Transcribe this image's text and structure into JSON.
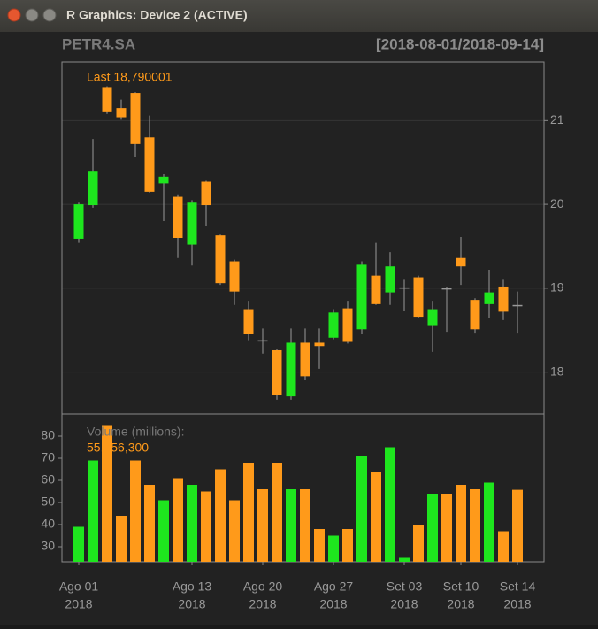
{
  "window": {
    "title": "R Graphics: Device 2 (ACTIVE)"
  },
  "chart_data": {
    "type": "candlestick",
    "title": "PETR4.SA",
    "subtitle": "[2018-08-01/2018-09-14]",
    "categories": [
      "Ago 01",
      null,
      null,
      null,
      null,
      null,
      null,
      null,
      "Ago 13",
      null,
      null,
      null,
      null,
      "Ago 20",
      null,
      null,
      null,
      null,
      "Ago 27",
      null,
      null,
      null,
      null,
      "Set 03",
      null,
      null,
      null,
      "Set 10",
      null,
      null,
      null,
      "Set 14"
    ],
    "category_years": [
      "2018",
      null,
      null,
      null,
      null,
      null,
      null,
      null,
      "2018",
      null,
      null,
      null,
      null,
      "2018",
      null,
      null,
      null,
      null,
      "2018",
      null,
      null,
      null,
      null,
      "2018",
      null,
      null,
      null,
      "2018",
      null,
      null,
      null,
      "2018"
    ],
    "open": [
      19.59,
      19.99,
      21.4,
      21.15,
      21.33,
      20.8,
      20.25,
      20.09,
      19.52,
      20.27,
      19.63,
      19.32,
      18.75,
      18.38,
      18.26,
      17.71,
      18.35,
      18.35,
      18.41,
      18.76,
      18.51,
      19.15,
      18.95,
      19.0,
      19.13,
      18.56,
      19.0,
      19.36,
      18.86,
      18.81,
      19.02,
      18.8
    ],
    "high": [
      20.03,
      20.78,
      21.41,
      21.25,
      21.34,
      21.06,
      20.36,
      20.12,
      20.05,
      20.28,
      19.64,
      19.34,
      18.85,
      18.52,
      18.28,
      18.52,
      18.52,
      18.52,
      18.75,
      18.85,
      19.32,
      19.54,
      19.43,
      19.11,
      19.15,
      18.85,
      19.02,
      19.61,
      18.88,
      19.22,
      19.11,
      18.96
    ],
    "low": [
      19.54,
      19.96,
      21.08,
      21.01,
      20.56,
      20.14,
      19.8,
      19.36,
      19.27,
      19.74,
      19.04,
      18.8,
      18.38,
      18.22,
      17.67,
      17.67,
      17.91,
      18.04,
      18.39,
      18.34,
      18.45,
      18.8,
      18.8,
      18.73,
      18.64,
      18.24,
      18.48,
      19.04,
      18.47,
      18.64,
      18.62,
      18.47
    ],
    "close": [
      20.0,
      20.4,
      21.1,
      21.04,
      20.72,
      20.15,
      20.33,
      19.6,
      20.03,
      19.99,
      19.06,
      18.96,
      18.46,
      18.37,
      17.73,
      18.35,
      17.95,
      18.31,
      18.71,
      18.36,
      19.29,
      18.81,
      19.26,
      19.01,
      18.66,
      18.75,
      18.99,
      19.26,
      18.51,
      18.95,
      18.72,
      18.790001
    ],
    "up_color": "#1ee61e",
    "down_color": "#ff9a1a",
    "ylim": [
      17.5,
      21.7
    ],
    "yticks": [
      18,
      19,
      20,
      21
    ],
    "grid": true,
    "last_label": "Last 18,790001",
    "volume": {
      "label": "Volume (millions):",
      "values": [
        39,
        69,
        85,
        44,
        69,
        58,
        51,
        61,
        58,
        55,
        65,
        51,
        68,
        56,
        68,
        56,
        56,
        38,
        35,
        38,
        71,
        64,
        75,
        25,
        40,
        54,
        54,
        58,
        56,
        59,
        37,
        55.7563
      ],
      "last_value_label": "55,756,300",
      "ylim": [
        23.2,
        90
      ],
      "yticks": [
        30,
        40,
        50,
        60,
        70,
        80
      ]
    }
  }
}
